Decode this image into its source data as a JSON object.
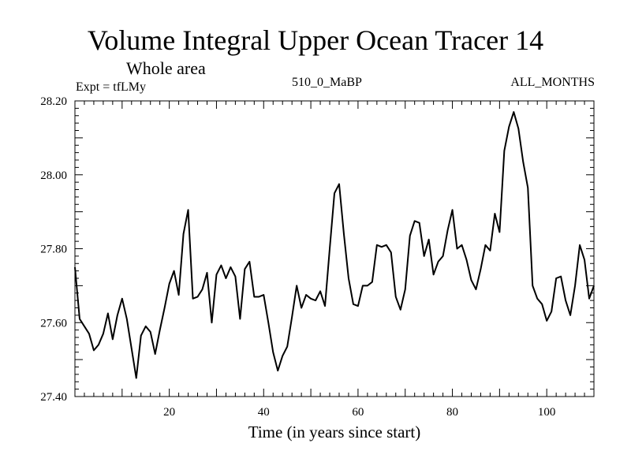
{
  "chart_data": {
    "type": "line",
    "title": "Volume Integral Upper Ocean Tracer 14",
    "subtitle": "Whole area",
    "annotations": {
      "left": "Expt = tfLMy",
      "center": "510_0_MaBP",
      "right": "ALL_MONTHS"
    },
    "xlabel": "Time (in years since start)",
    "ylabel": "",
    "xlim": [
      0,
      110
    ],
    "ylim": [
      27.4,
      28.2
    ],
    "xticks": [
      20,
      40,
      60,
      80,
      100
    ],
    "xtick_labels": [
      "20",
      "40",
      "60",
      "80",
      "100"
    ],
    "yticks": [
      27.4,
      27.6,
      27.8,
      28.0,
      28.2
    ],
    "ytick_labels": [
      "27.40",
      "27.60",
      "27.80",
      "28.00",
      "28.20"
    ],
    "grid": false,
    "series": [
      {
        "name": "Tracer 14",
        "color": "#000000",
        "x": [
          0,
          1,
          2,
          3,
          4,
          5,
          6,
          7,
          8,
          9,
          10,
          11,
          12,
          13,
          14,
          15,
          16,
          17,
          18,
          19,
          20,
          21,
          22,
          23,
          24,
          25,
          26,
          27,
          28,
          29,
          30,
          31,
          32,
          33,
          34,
          35,
          36,
          37,
          38,
          39,
          40,
          41,
          42,
          43,
          44,
          45,
          46,
          47,
          48,
          49,
          50,
          51,
          52,
          53,
          54,
          55,
          56,
          57,
          58,
          59,
          60,
          61,
          62,
          63,
          64,
          65,
          66,
          67,
          68,
          69,
          70,
          71,
          72,
          73,
          74,
          75,
          76,
          77,
          78,
          79,
          80,
          81,
          82,
          83,
          84,
          85,
          86,
          87,
          88,
          89,
          90,
          91,
          92,
          93,
          94,
          95,
          96,
          97,
          98,
          99,
          100,
          101,
          102,
          103,
          104,
          105,
          106,
          107,
          108,
          109,
          110
        ],
        "values": [
          27.75,
          27.61,
          27.59,
          27.57,
          27.525,
          27.54,
          27.57,
          27.625,
          27.555,
          27.62,
          27.665,
          27.61,
          27.53,
          27.45,
          27.565,
          27.59,
          27.575,
          27.515,
          27.58,
          27.64,
          27.705,
          27.74,
          27.675,
          27.84,
          27.905,
          27.665,
          27.67,
          27.69,
          27.735,
          27.6,
          27.73,
          27.755,
          27.72,
          27.75,
          27.725,
          27.61,
          27.745,
          27.765,
          27.67,
          27.67,
          27.675,
          27.6,
          27.52,
          27.47,
          27.51,
          27.535,
          27.615,
          27.7,
          27.64,
          27.675,
          27.665,
          27.66,
          27.685,
          27.645,
          27.8,
          27.95,
          27.975,
          27.84,
          27.72,
          27.65,
          27.645,
          27.7,
          27.7,
          27.71,
          27.81,
          27.805,
          27.81,
          27.79,
          27.67,
          27.635,
          27.69,
          27.835,
          27.875,
          27.87,
          27.78,
          27.825,
          27.73,
          27.765,
          27.78,
          27.85,
          27.905,
          27.8,
          27.81,
          27.77,
          27.715,
          27.69,
          27.745,
          27.81,
          27.795,
          27.895,
          27.845,
          28.065,
          28.13,
          28.17,
          28.125,
          28.035,
          27.965,
          27.7,
          27.665,
          27.65,
          27.605,
          27.63,
          27.72,
          27.725,
          27.66,
          27.62,
          27.7,
          27.81,
          27.77,
          27.665,
          27.7
        ]
      }
    ]
  }
}
